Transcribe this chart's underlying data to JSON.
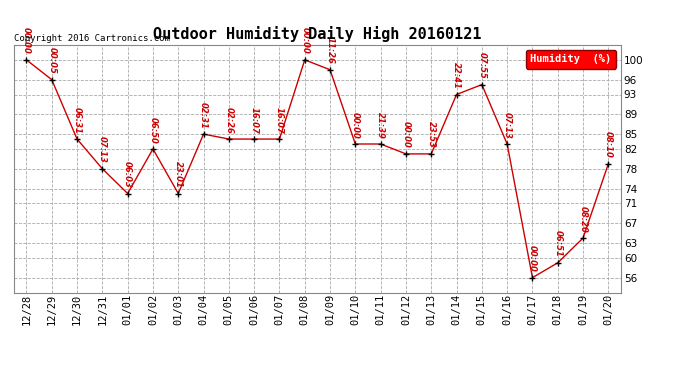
{
  "title": "Outdoor Humidity Daily High 20160121",
  "copyright_text": "Copyright 2016 Cartronics.com",
  "legend_label": "Humidity  (%)",
  "ylabel_ticks": [
    56,
    60,
    63,
    67,
    71,
    74,
    78,
    82,
    85,
    89,
    93,
    96,
    100
  ],
  "xlabels": [
    "12/28",
    "12/29",
    "12/30",
    "12/31",
    "01/01",
    "01/02",
    "01/03",
    "01/04",
    "01/05",
    "01/06",
    "01/07",
    "01/08",
    "01/09",
    "01/10",
    "01/11",
    "01/12",
    "01/13",
    "01/14",
    "01/15",
    "01/16",
    "01/17",
    "01/18",
    "01/19",
    "01/20"
  ],
  "data_points": [
    {
      "date": "12/28",
      "value": 100,
      "label": "00:00"
    },
    {
      "date": "12/29",
      "value": 96,
      "label": "00:05"
    },
    {
      "date": "12/30",
      "value": 84,
      "label": "06:31"
    },
    {
      "date": "12/31",
      "value": 78,
      "label": "07:13"
    },
    {
      "date": "01/01",
      "value": 73,
      "label": "06:03"
    },
    {
      "date": "01/02",
      "value": 82,
      "label": "06:50"
    },
    {
      "date": "01/03",
      "value": 73,
      "label": "23:01"
    },
    {
      "date": "01/04",
      "value": 85,
      "label": "02:31"
    },
    {
      "date": "01/05",
      "value": 84,
      "label": "02:26"
    },
    {
      "date": "01/06",
      "value": 84,
      "label": "16:07"
    },
    {
      "date": "01/07",
      "value": 84,
      "label": "16:07"
    },
    {
      "date": "01/08",
      "value": 100,
      "label": "00:00"
    },
    {
      "date": "01/09",
      "value": 98,
      "label": "11:26"
    },
    {
      "date": "01/10",
      "value": 83,
      "label": "00:00"
    },
    {
      "date": "01/11",
      "value": 83,
      "label": "21:39"
    },
    {
      "date": "01/12",
      "value": 81,
      "label": "00:00"
    },
    {
      "date": "01/13",
      "value": 81,
      "label": "23:53"
    },
    {
      "date": "01/14",
      "value": 93,
      "label": "22:41"
    },
    {
      "date": "01/15",
      "value": 95,
      "label": "07:55"
    },
    {
      "date": "01/16",
      "value": 83,
      "label": "07:13"
    },
    {
      "date": "01/17",
      "value": 56,
      "label": "00:00"
    },
    {
      "date": "01/18",
      "value": 59,
      "label": "06:51"
    },
    {
      "date": "01/19",
      "value": 64,
      "label": "08:20"
    },
    {
      "date": "01/20",
      "value": 79,
      "label": "08:10"
    }
  ],
  "line_color": "#cc0000",
  "marker_color": "#000000",
  "bg_color": "#ffffff",
  "grid_color": "#aaaaaa",
  "ylim": [
    53,
    103
  ],
  "title_fontsize": 11,
  "tick_fontsize": 7.5,
  "label_fontsize": 6.5
}
